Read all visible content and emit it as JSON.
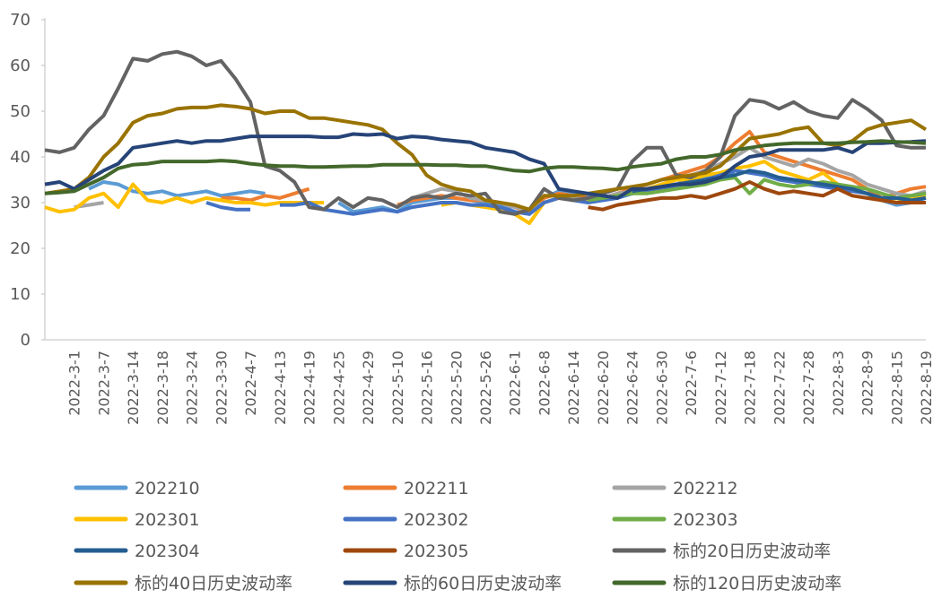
{
  "chart_data": {
    "type": "line",
    "categories": [
      null,
      null,
      "2022-3-1",
      null,
      "2022-3-7",
      null,
      "2022-3-14",
      null,
      "2022-3-18",
      null,
      "2022-3-24",
      null,
      "2022-3-30",
      null,
      "2022-4-7",
      null,
      "2022-4-13",
      null,
      "2022-4-19",
      null,
      "2022-4-25",
      null,
      "2022-4-29",
      null,
      "2022-5-10",
      null,
      "2022-5-16",
      null,
      "2022-5-20",
      null,
      "2022-5-26",
      null,
      "2022-6-1",
      null,
      "2022-6-8",
      null,
      "2022-6-14",
      null,
      "2022-6-20",
      null,
      "2022-6-24",
      null,
      "2022-6-30",
      null,
      "2022-7-6",
      null,
      "2022-7-12",
      null,
      "2022-7-18",
      null,
      "2022-7-22",
      null,
      "2022-7-28",
      null,
      "2022-8-3",
      null,
      "2022-8-9",
      null,
      "2022-8-15",
      null,
      "2022-8-19"
    ],
    "ylim": [
      0,
      70
    ],
    "yticks": [
      0,
      10,
      20,
      30,
      40,
      50,
      60,
      70
    ],
    "series": [
      {
        "name": "202210",
        "color": "#5b9bd5",
        "values": [
          null,
          null,
          null,
          33,
          34.5,
          34,
          32.5,
          32,
          32.5,
          31.5,
          32,
          32.5,
          31.5,
          32,
          32.5,
          32,
          null,
          null,
          null,
          null,
          30,
          28,
          28.5,
          29,
          28,
          30,
          30.5,
          31,
          31,
          30.5,
          30,
          29.5,
          28,
          27.5,
          31,
          32.5,
          32,
          31.5,
          31,
          31.5,
          32,
          33,
          33.5,
          34,
          35,
          35.5,
          36,
          36.5,
          null,
          null,
          null,
          null,
          null,
          null,
          null,
          33,
          32,
          30.5,
          29.5,
          30,
          31
        ]
      },
      {
        "name": "202211",
        "color": "#ed7d31",
        "values": [
          null,
          null,
          null,
          null,
          null,
          null,
          null,
          null,
          null,
          null,
          null,
          null,
          31,
          31,
          30.5,
          31.5,
          31,
          32,
          33,
          null,
          null,
          null,
          null,
          null,
          29.5,
          30.5,
          31,
          31.5,
          31,
          30.5,
          30.5,
          30,
          29,
          28,
          31,
          32,
          31.5,
          31,
          31,
          32,
          33,
          34,
          35,
          36,
          37,
          38,
          40,
          43,
          45.5,
          41,
          40,
          39,
          38,
          37,
          36,
          35,
          33,
          31,
          32,
          33,
          33.5
        ]
      },
      {
        "name": "202212",
        "color": "#a5a5a5",
        "values": [
          null,
          null,
          29,
          29.5,
          30,
          null,
          null,
          null,
          null,
          null,
          null,
          null,
          null,
          null,
          null,
          null,
          null,
          null,
          null,
          null,
          null,
          null,
          null,
          null,
          null,
          31,
          32,
          33,
          32.5,
          31,
          30.5,
          30,
          29,
          28.5,
          30,
          31,
          31,
          30.5,
          31,
          32,
          32.5,
          33,
          34,
          35,
          36,
          37,
          38.5,
          40,
          42,
          40,
          39,
          38,
          39.5,
          38.5,
          37,
          36,
          34,
          33,
          32,
          31.5,
          32.5
        ]
      },
      {
        "name": "202301",
        "color": "#ffc000",
        "values": [
          29,
          28,
          28.5,
          31,
          32,
          29,
          34,
          30.5,
          30,
          31,
          30,
          31,
          30.5,
          30,
          30,
          29.5,
          30,
          30,
          30,
          30,
          null,
          null,
          null,
          null,
          null,
          null,
          null,
          29.5,
          30,
          29.5,
          29,
          28.5,
          27.5,
          25.5,
          30,
          31,
          30.5,
          30.5,
          31,
          31.5,
          32,
          33,
          34,
          35,
          35,
          36,
          36.5,
          37.5,
          38,
          39,
          37,
          36,
          35,
          36.5,
          34,
          33,
          32,
          31,
          30,
          31,
          31.5
        ]
      },
      {
        "name": "202302",
        "color": "#4472c4",
        "values": [
          null,
          null,
          null,
          null,
          null,
          null,
          null,
          null,
          null,
          null,
          null,
          30,
          29,
          28.5,
          28.5,
          null,
          29.5,
          29.5,
          30,
          28.5,
          28,
          27.5,
          28,
          28.5,
          28,
          29,
          29.5,
          30,
          30,
          29.5,
          29.5,
          29,
          28,
          27.5,
          30,
          31,
          30.5,
          30,
          30.5,
          31,
          32,
          32.5,
          33,
          33.5,
          34,
          35,
          36,
          37,
          36.5,
          36,
          35,
          34.5,
          34,
          33.5,
          33,
          32.5,
          32,
          31,
          31,
          31.5,
          32
        ]
      },
      {
        "name": "202303",
        "color": "#70ad47",
        "values": [
          null,
          null,
          null,
          null,
          null,
          null,
          null,
          null,
          null,
          null,
          null,
          null,
          null,
          null,
          null,
          null,
          null,
          null,
          null,
          null,
          null,
          null,
          null,
          null,
          null,
          null,
          null,
          null,
          null,
          null,
          null,
          null,
          null,
          null,
          null,
          null,
          null,
          30.5,
          31,
          31.5,
          32,
          32,
          32.5,
          33,
          33.5,
          34,
          35,
          35.5,
          32,
          35,
          34,
          33.5,
          34,
          34.5,
          34,
          33.5,
          33,
          32,
          31,
          31.5,
          32
        ]
      },
      {
        "name": "202304",
        "color": "#255e91",
        "values": [
          null,
          null,
          null,
          null,
          null,
          null,
          null,
          null,
          null,
          null,
          null,
          null,
          null,
          null,
          null,
          null,
          null,
          null,
          null,
          null,
          null,
          null,
          null,
          null,
          null,
          null,
          null,
          null,
          null,
          null,
          null,
          null,
          null,
          null,
          null,
          null,
          null,
          null,
          null,
          null,
          32.5,
          33,
          33.5,
          34,
          34.5,
          35,
          35.5,
          36,
          37,
          36.5,
          35.5,
          35,
          34.5,
          34,
          33.5,
          33,
          32,
          31,
          31,
          30.5,
          31
        ]
      },
      {
        "name": "202305",
        "color": "#9e480e",
        "values": [
          null,
          null,
          null,
          null,
          null,
          null,
          null,
          null,
          null,
          null,
          null,
          null,
          null,
          null,
          null,
          null,
          null,
          null,
          null,
          null,
          null,
          null,
          null,
          null,
          null,
          null,
          null,
          null,
          null,
          null,
          null,
          null,
          null,
          null,
          null,
          null,
          null,
          29,
          28.5,
          29.5,
          30,
          30.5,
          31,
          31,
          31.5,
          31,
          32,
          33,
          34.5,
          33,
          32,
          32.5,
          32,
          31.5,
          33,
          31.5,
          31,
          30.5,
          30,
          30,
          30
        ]
      },
      {
        "name": "标的20日历史波动率",
        "color": "#636363",
        "values": [
          41.5,
          41,
          42,
          46,
          49,
          55,
          61.5,
          61,
          62.5,
          63,
          62,
          60,
          61,
          57,
          52,
          38,
          37,
          34.5,
          29,
          28.5,
          31,
          29,
          31,
          30.5,
          29,
          31,
          31.5,
          31,
          32,
          31.5,
          32,
          28,
          27.5,
          28.5,
          33,
          31,
          30.5,
          31,
          32,
          33,
          39,
          42,
          42,
          36,
          35.5,
          37,
          40,
          49,
          52.5,
          52,
          50.5,
          52,
          50,
          49,
          48.5,
          52.5,
          50.5,
          48,
          42.5,
          42,
          42
        ]
      },
      {
        "name": "标的40日历史波动率",
        "color": "#997300",
        "values": [
          32,
          32.5,
          33,
          35.5,
          40,
          43,
          47.5,
          49,
          49.5,
          50.5,
          50.8,
          50.8,
          51.3,
          51,
          50.5,
          49.5,
          50,
          50,
          48.5,
          48.5,
          48,
          47.5,
          47,
          46,
          43,
          40.5,
          36,
          34,
          33,
          32.5,
          30.5,
          30,
          29.5,
          28.5,
          31.5,
          31.5,
          31.5,
          32,
          32.5,
          33,
          33.5,
          34,
          35,
          35.5,
          36,
          36.5,
          38,
          41,
          44,
          44.5,
          45,
          46,
          46.5,
          43,
          42.5,
          43.5,
          46,
          47,
          47.5,
          48,
          46
        ]
      },
      {
        "name": "标的60日历史波动率",
        "color": "#264478",
        "values": [
          34,
          34.5,
          33,
          35,
          37,
          38.5,
          42,
          42.5,
          43,
          43.5,
          43,
          43.5,
          43.5,
          44,
          44.5,
          44.5,
          44.5,
          44.5,
          44.5,
          44.3,
          44.3,
          45,
          44.8,
          45,
          44,
          44.5,
          44.3,
          43.8,
          43.5,
          43.2,
          42,
          41.5,
          41,
          39.5,
          38.5,
          33,
          32.5,
          32,
          31.5,
          31,
          33,
          33,
          33.5,
          34,
          34,
          34.5,
          35.5,
          38,
          40,
          40.5,
          41.5,
          41.5,
          41.5,
          41.5,
          42,
          41,
          43,
          43,
          43.2,
          43.3,
          43.5
        ]
      },
      {
        "name": "标的120日历史波动率",
        "color": "#43682b",
        "values": [
          32,
          32.2,
          32.5,
          34,
          35.5,
          37.5,
          38.3,
          38.5,
          39,
          39,
          39,
          39,
          39.2,
          39,
          38.5,
          38.2,
          38,
          38,
          37.8,
          37.8,
          37.9,
          38,
          38,
          38.3,
          38.3,
          38.3,
          38.3,
          38.2,
          38.2,
          38,
          38,
          37.5,
          37,
          36.8,
          37.5,
          37.8,
          37.8,
          37.6,
          37.5,
          37.2,
          37.8,
          38.2,
          38.5,
          39.5,
          40,
          40,
          40.5,
          41.5,
          42,
          42.5,
          42.8,
          43,
          43,
          43,
          43,
          43.2,
          43.3,
          43.5,
          43.3,
          43.2,
          43
        ]
      }
    ]
  }
}
